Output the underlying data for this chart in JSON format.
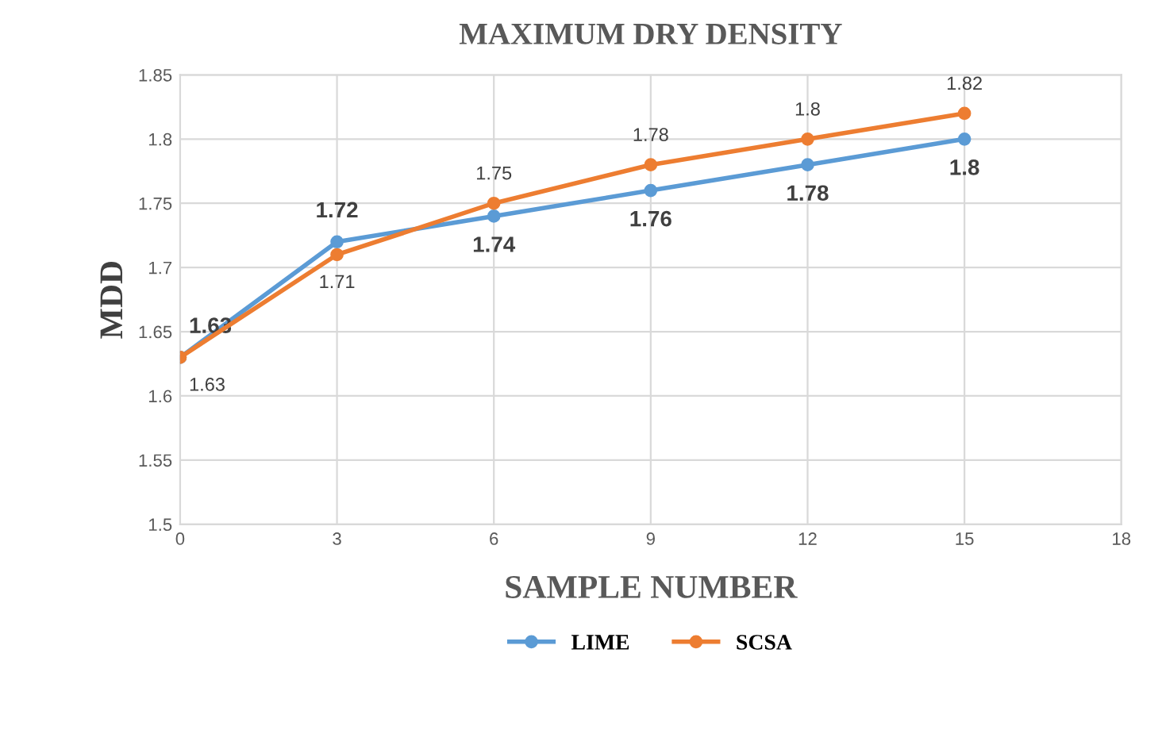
{
  "chart_data": {
    "type": "line",
    "title": "MAXIMUM DRY DENSITY",
    "xlabel": "SAMPLE NUMBER",
    "ylabel": "MDD",
    "x": [
      0,
      3,
      6,
      9,
      12,
      15
    ],
    "series": [
      {
        "name": "LIME",
        "color": "#5b9bd5",
        "values": [
          1.63,
          1.72,
          1.74,
          1.76,
          1.78,
          1.8
        ]
      },
      {
        "name": "SCSA",
        "color": "#ed7d31",
        "values": [
          1.63,
          1.71,
          1.75,
          1.78,
          1.8,
          1.82
        ]
      }
    ],
    "xlim": [
      0,
      18
    ],
    "xticks": [
      0,
      3,
      6,
      9,
      12,
      15,
      18
    ],
    "ylim": [
      1.5,
      1.85
    ],
    "yticks": [
      1.5,
      1.55,
      1.6,
      1.65,
      1.7,
      1.75,
      1.8,
      1.85
    ],
    "grid": true,
    "legend": "bottom",
    "marker": "circle",
    "line_style": "solid",
    "data_labels": true
  }
}
